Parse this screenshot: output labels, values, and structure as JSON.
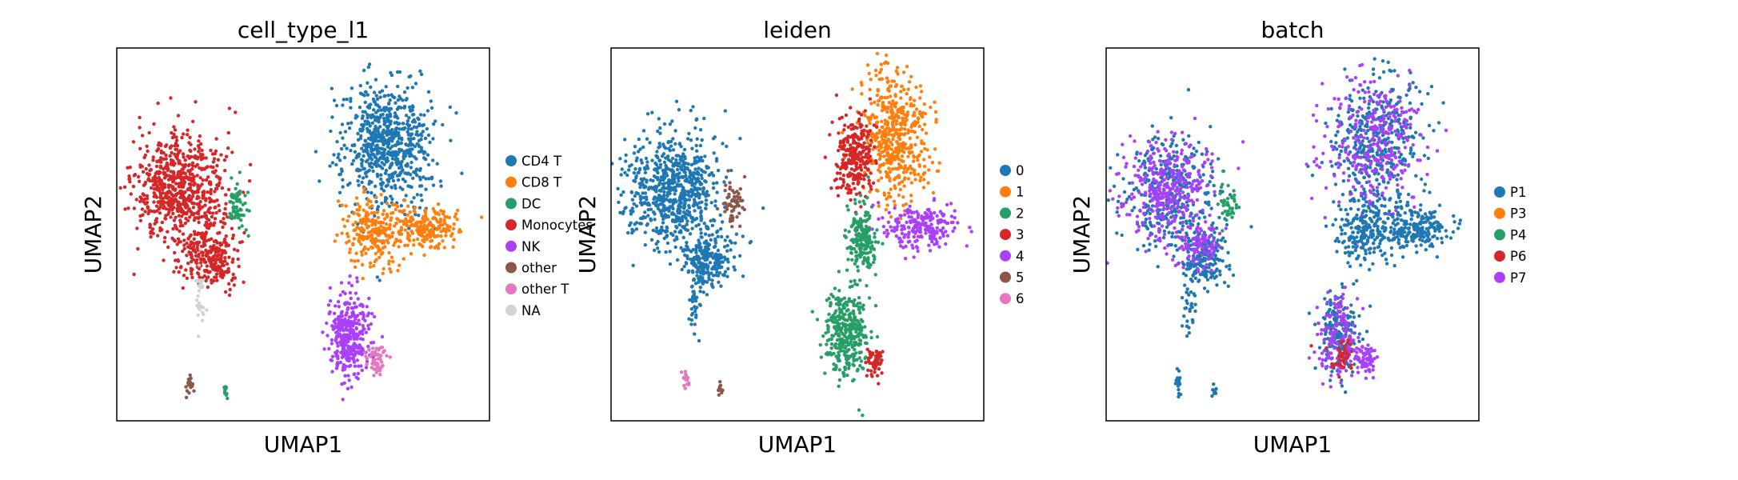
{
  "chart_data": [
    {
      "type": "scatter",
      "title": "cell_type_l1",
      "xlabel": "UMAP1",
      "ylabel": "UMAP2",
      "ticks": false,
      "legend": {
        "placement": "right-outside",
        "entries": [
          {
            "label": "CD4 T",
            "color": "#1f77b4"
          },
          {
            "label": "CD8 T",
            "color": "#ff7f0e"
          },
          {
            "label": "DC",
            "color": "#279e68"
          },
          {
            "label": "Monocytes",
            "color": "#d62728"
          },
          {
            "label": "NK",
            "color": "#aa40fc"
          },
          {
            "label": "other",
            "color": "#8c564b"
          },
          {
            "label": "other T",
            "color": "#e377c2"
          },
          {
            "label": "NA",
            "color": "#d3d3d3"
          }
        ]
      },
      "clusters": [
        {
          "category": "Monocytes",
          "center": [
            2.2,
            6.6
          ],
          "spread": [
            1.6,
            1.5
          ],
          "count": 700
        },
        {
          "category": "Monocytes",
          "center": [
            3.5,
            4.6
          ],
          "spread": [
            0.9,
            0.8
          ],
          "count": 250
        },
        {
          "category": "DC",
          "center": [
            4.5,
            6.2
          ],
          "spread": [
            0.35,
            0.6
          ],
          "count": 60
        },
        {
          "category": "CD4 T",
          "center": [
            10.2,
            8.0
          ],
          "spread": [
            1.6,
            1.8
          ],
          "count": 700
        },
        {
          "category": "CD8 T",
          "center": [
            9.7,
            5.4
          ],
          "spread": [
            0.9,
            0.9
          ],
          "count": 220
        },
        {
          "category": "CD8 T",
          "center": [
            11.7,
            5.5
          ],
          "spread": [
            1.2,
            0.55
          ],
          "count": 220
        },
        {
          "category": "NK",
          "center": [
            8.8,
            2.3
          ],
          "spread": [
            0.75,
            1.1
          ],
          "count": 350
        },
        {
          "category": "other T",
          "center": [
            9.8,
            1.6
          ],
          "spread": [
            0.35,
            0.4
          ],
          "count": 60
        },
        {
          "category": "other",
          "center": [
            2.6,
            0.9
          ],
          "spread": [
            0.12,
            0.3
          ],
          "count": 20
        },
        {
          "category": "DC",
          "center": [
            4.0,
            0.7
          ],
          "spread": [
            0.1,
            0.2
          ],
          "count": 12
        },
        {
          "category": "NA",
          "center": [
            3.0,
            3.2
          ],
          "spread": [
            0.2,
            0.8
          ],
          "count": 30
        }
      ]
    },
    {
      "type": "scatter",
      "title": "leiden",
      "xlabel": "UMAP1",
      "ylabel": "UMAP2",
      "ticks": false,
      "legend": {
        "placement": "right-outside",
        "entries": [
          {
            "label": "0",
            "color": "#1f77b4"
          },
          {
            "label": "1",
            "color": "#ff7f0e"
          },
          {
            "label": "2",
            "color": "#279e68"
          },
          {
            "label": "3",
            "color": "#d62728"
          },
          {
            "label": "4",
            "color": "#aa40fc"
          },
          {
            "label": "5",
            "color": "#8c564b"
          },
          {
            "label": "6",
            "color": "#e377c2"
          }
        ]
      },
      "clusters": [
        {
          "category": "0",
          "center": [
            2.2,
            6.6
          ],
          "spread": [
            1.6,
            1.5
          ],
          "count": 700
        },
        {
          "category": "0",
          "center": [
            3.5,
            4.6
          ],
          "spread": [
            0.9,
            0.8
          ],
          "count": 250
        },
        {
          "category": "5",
          "center": [
            4.5,
            6.2
          ],
          "spread": [
            0.35,
            0.6
          ],
          "count": 60
        },
        {
          "category": "1",
          "center": [
            10.8,
            8.2
          ],
          "spread": [
            1.2,
            1.8
          ],
          "count": 500
        },
        {
          "category": "3",
          "center": [
            9.2,
            7.6
          ],
          "spread": [
            0.7,
            1.1
          ],
          "count": 260
        },
        {
          "category": "2",
          "center": [
            9.5,
            5.2
          ],
          "spread": [
            0.55,
            0.9
          ],
          "count": 200
        },
        {
          "category": "4",
          "center": [
            11.7,
            5.5
          ],
          "spread": [
            1.2,
            0.55
          ],
          "count": 220
        },
        {
          "category": "2",
          "center": [
            8.9,
            2.4
          ],
          "spread": [
            0.8,
            1.2
          ],
          "count": 350
        },
        {
          "category": "3",
          "center": [
            10.0,
            1.6
          ],
          "spread": [
            0.35,
            0.4
          ],
          "count": 60
        },
        {
          "category": "6",
          "center": [
            2.7,
            1.0
          ],
          "spread": [
            0.12,
            0.3
          ],
          "count": 20
        },
        {
          "category": "5",
          "center": [
            4.0,
            0.7
          ],
          "spread": [
            0.1,
            0.2
          ],
          "count": 12
        },
        {
          "category": "0",
          "center": [
            3.0,
            3.2
          ],
          "spread": [
            0.2,
            0.8
          ],
          "count": 30
        }
      ]
    },
    {
      "type": "scatter",
      "title": "batch",
      "xlabel": "UMAP1",
      "ylabel": "UMAP2",
      "ticks": false,
      "legend": {
        "placement": "right-outside",
        "entries": [
          {
            "label": "P1",
            "color": "#1f77b4"
          },
          {
            "label": "P3",
            "color": "#ff7f0e"
          },
          {
            "label": "P4",
            "color": "#279e68"
          },
          {
            "label": "P6",
            "color": "#d62728"
          },
          {
            "label": "P7",
            "color": "#aa40fc"
          }
        ]
      },
      "clusters": [
        {
          "category": "P1",
          "center": [
            2.2,
            6.6
          ],
          "spread": [
            1.6,
            1.5
          ],
          "count": 350
        },
        {
          "category": "P7",
          "center": [
            2.2,
            6.6
          ],
          "spread": [
            1.6,
            1.5
          ],
          "count": 350
        },
        {
          "category": "P1",
          "center": [
            3.5,
            4.6
          ],
          "spread": [
            0.9,
            0.8
          ],
          "count": 200
        },
        {
          "category": "P7",
          "center": [
            3.3,
            5.0
          ],
          "spread": [
            0.7,
            0.6
          ],
          "count": 80
        },
        {
          "category": "P4",
          "center": [
            4.5,
            6.2
          ],
          "spread": [
            0.35,
            0.6
          ],
          "count": 40
        },
        {
          "category": "P1",
          "center": [
            10.2,
            8.0
          ],
          "spread": [
            1.6,
            1.8
          ],
          "count": 400
        },
        {
          "category": "P7",
          "center": [
            10.2,
            8.0
          ],
          "spread": [
            1.6,
            1.8
          ],
          "count": 300
        },
        {
          "category": "P1",
          "center": [
            9.7,
            5.4
          ],
          "spread": [
            0.9,
            0.9
          ],
          "count": 200
        },
        {
          "category": "P1",
          "center": [
            11.7,
            5.5
          ],
          "spread": [
            1.2,
            0.55
          ],
          "count": 220
        },
        {
          "category": "P1",
          "center": [
            8.8,
            2.3
          ],
          "spread": [
            0.75,
            1.1
          ],
          "count": 200
        },
        {
          "category": "P7",
          "center": [
            8.8,
            2.3
          ],
          "spread": [
            0.75,
            1.1
          ],
          "count": 150
        },
        {
          "category": "P6",
          "center": [
            8.9,
            1.7
          ],
          "spread": [
            0.5,
            0.5
          ],
          "count": 40
        },
        {
          "category": "P7",
          "center": [
            9.8,
            1.6
          ],
          "spread": [
            0.35,
            0.4
          ],
          "count": 60
        },
        {
          "category": "P1",
          "center": [
            2.6,
            0.9
          ],
          "spread": [
            0.12,
            0.3
          ],
          "count": 20
        },
        {
          "category": "P1",
          "center": [
            4.0,
            0.7
          ],
          "spread": [
            0.1,
            0.2
          ],
          "count": 12
        },
        {
          "category": "P1",
          "center": [
            3.0,
            3.2
          ],
          "spread": [
            0.2,
            0.8
          ],
          "count": 30
        }
      ]
    }
  ]
}
